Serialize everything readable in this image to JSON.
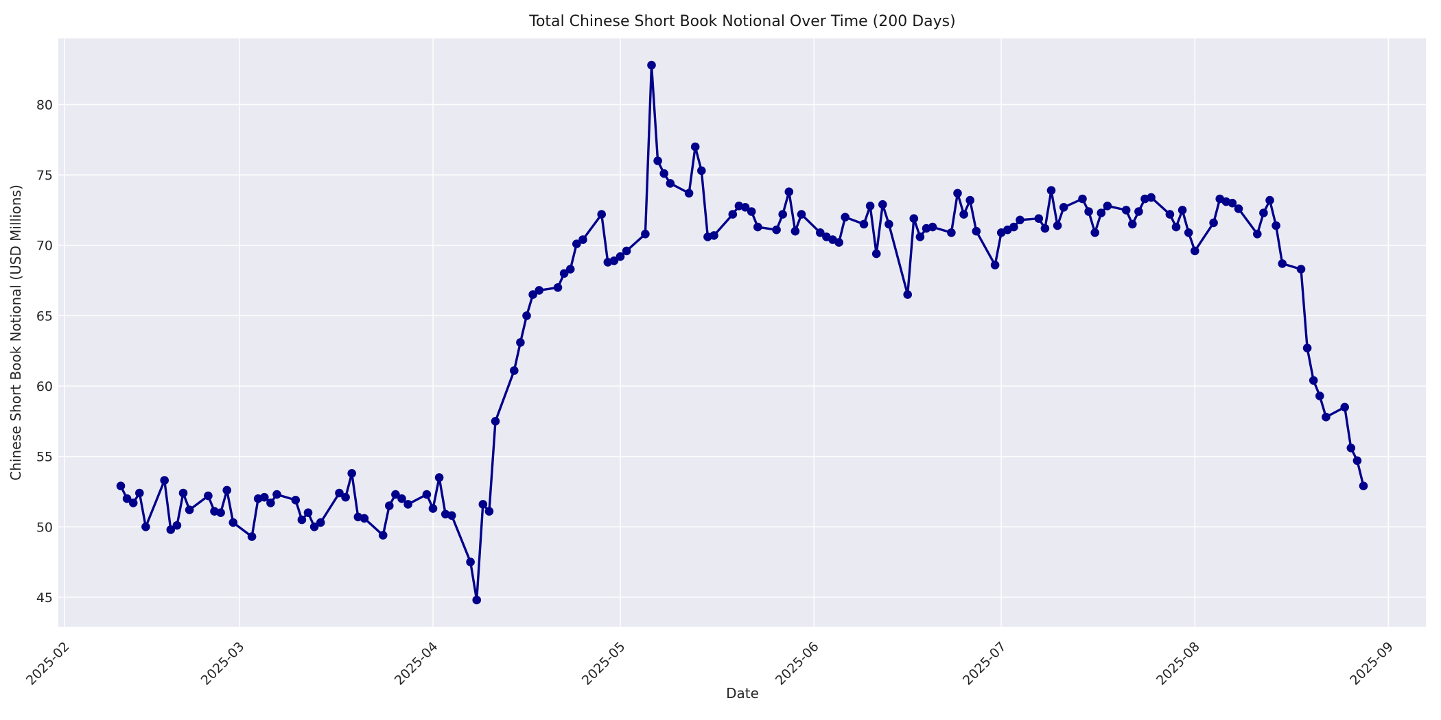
{
  "chart_data": {
    "type": "line",
    "title": "Total Chinese Short Book Notional Over Time (200 Days)",
    "xlabel": "Date",
    "ylabel": "Chinese Short Book Notional (USD Millions)",
    "grid": true,
    "legend_position": "none",
    "line_color": "#00008b",
    "marker_color": "#00008b",
    "plot_background": "#eaeaf2",
    "grid_color": "#ffffff",
    "text_color": "#262626",
    "ylim": [
      42.9,
      84.7
    ],
    "xlim": [
      "2025-01-31",
      "2025-09-07"
    ],
    "y_ticks": [
      45,
      50,
      55,
      60,
      65,
      70,
      75,
      80
    ],
    "x_ticks": [
      {
        "date": "2025-02-01",
        "label": "2025-02"
      },
      {
        "date": "2025-03-01",
        "label": "2025-03"
      },
      {
        "date": "2025-04-01",
        "label": "2025-04"
      },
      {
        "date": "2025-05-01",
        "label": "2025-05"
      },
      {
        "date": "2025-06-01",
        "label": "2025-06"
      },
      {
        "date": "2025-07-01",
        "label": "2025-07"
      },
      {
        "date": "2025-08-01",
        "label": "2025-08"
      },
      {
        "date": "2025-09-01",
        "label": "2025-09"
      }
    ],
    "x": [
      "2025-02-10",
      "2025-02-11",
      "2025-02-12",
      "2025-02-13",
      "2025-02-14",
      "2025-02-17",
      "2025-02-18",
      "2025-02-19",
      "2025-02-20",
      "2025-02-21",
      "2025-02-24",
      "2025-02-25",
      "2025-02-26",
      "2025-02-27",
      "2025-02-28",
      "2025-03-03",
      "2025-03-04",
      "2025-03-05",
      "2025-03-06",
      "2025-03-07",
      "2025-03-10",
      "2025-03-11",
      "2025-03-12",
      "2025-03-13",
      "2025-03-14",
      "2025-03-17",
      "2025-03-18",
      "2025-03-19",
      "2025-03-20",
      "2025-03-21",
      "2025-03-24",
      "2025-03-25",
      "2025-03-26",
      "2025-03-27",
      "2025-03-28",
      "2025-03-31",
      "2025-04-01",
      "2025-04-02",
      "2025-04-03",
      "2025-04-04",
      "2025-04-07",
      "2025-04-08",
      "2025-04-09",
      "2025-04-10",
      "2025-04-11",
      "2025-04-14",
      "2025-04-15",
      "2025-04-16",
      "2025-04-17",
      "2025-04-18",
      "2025-04-21",
      "2025-04-22",
      "2025-04-23",
      "2025-04-24",
      "2025-04-25",
      "2025-04-28",
      "2025-04-29",
      "2025-04-30",
      "2025-05-01",
      "2025-05-02",
      "2025-05-05",
      "2025-05-06",
      "2025-05-07",
      "2025-05-08",
      "2025-05-09",
      "2025-05-12",
      "2025-05-13",
      "2025-05-14",
      "2025-05-15",
      "2025-05-16",
      "2025-05-19",
      "2025-05-20",
      "2025-05-21",
      "2025-05-22",
      "2025-05-23",
      "2025-05-26",
      "2025-05-27",
      "2025-05-28",
      "2025-05-29",
      "2025-05-30",
      "2025-06-02",
      "2025-06-03",
      "2025-06-04",
      "2025-06-05",
      "2025-06-06",
      "2025-06-09",
      "2025-06-10",
      "2025-06-11",
      "2025-06-12",
      "2025-06-13",
      "2025-06-16",
      "2025-06-17",
      "2025-06-18",
      "2025-06-19",
      "2025-06-20",
      "2025-06-23",
      "2025-06-24",
      "2025-06-25",
      "2025-06-26",
      "2025-06-27",
      "2025-06-30",
      "2025-07-01",
      "2025-07-02",
      "2025-07-03",
      "2025-07-04",
      "2025-07-07",
      "2025-07-08",
      "2025-07-09",
      "2025-07-10",
      "2025-07-11",
      "2025-07-14",
      "2025-07-15",
      "2025-07-16",
      "2025-07-17",
      "2025-07-18",
      "2025-07-21",
      "2025-07-22",
      "2025-07-23",
      "2025-07-24",
      "2025-07-25",
      "2025-07-28",
      "2025-07-29",
      "2025-07-30",
      "2025-07-31",
      "2025-08-01",
      "2025-08-04",
      "2025-08-05",
      "2025-08-06",
      "2025-08-07",
      "2025-08-08",
      "2025-08-11",
      "2025-08-12",
      "2025-08-13",
      "2025-08-14",
      "2025-08-15",
      "2025-08-18",
      "2025-08-19",
      "2025-08-20",
      "2025-08-21",
      "2025-08-22",
      "2025-08-25",
      "2025-08-26",
      "2025-08-27",
      "2025-08-28"
    ],
    "values": [
      52.9,
      52.0,
      51.7,
      52.4,
      50.0,
      53.3,
      49.8,
      50.1,
      52.4,
      51.2,
      52.2,
      51.1,
      51.0,
      52.6,
      50.3,
      49.3,
      52.0,
      52.1,
      51.7,
      52.3,
      51.9,
      50.5,
      51.0,
      50.0,
      50.3,
      52.4,
      52.1,
      53.8,
      50.7,
      50.6,
      49.4,
      51.5,
      52.3,
      52.0,
      51.6,
      52.3,
      51.3,
      53.5,
      50.9,
      50.8,
      47.5,
      44.8,
      51.6,
      51.1,
      57.5,
      61.1,
      63.1,
      65.0,
      66.5,
      66.8,
      67.0,
      68.0,
      68.3,
      70.1,
      70.4,
      72.2,
      68.8,
      68.9,
      69.2,
      69.6,
      70.8,
      82.8,
      76.0,
      75.1,
      74.4,
      73.7,
      77.0,
      75.3,
      70.6,
      70.7,
      72.2,
      72.8,
      72.7,
      72.4,
      71.3,
      71.1,
      72.2,
      73.8,
      71.0,
      72.2,
      70.9,
      70.6,
      70.4,
      70.2,
      72.0,
      71.5,
      72.8,
      69.4,
      72.9,
      71.5,
      66.5,
      71.9,
      70.6,
      71.2,
      71.3,
      70.9,
      73.7,
      72.2,
      73.2,
      71.0,
      68.6,
      70.9,
      71.1,
      71.3,
      71.8,
      71.9,
      71.2,
      73.9,
      71.4,
      72.7,
      73.3,
      72.4,
      70.9,
      72.3,
      72.8,
      72.5,
      71.5,
      72.4,
      73.3,
      73.4,
      72.2,
      71.3,
      72.5,
      70.9,
      69.6,
      71.6,
      73.3,
      73.1,
      73.0,
      72.6,
      70.8,
      72.3,
      73.2,
      71.4,
      68.7,
      68.3,
      62.7,
      60.4,
      59.3,
      57.8,
      58.5,
      55.6,
      54.7,
      52.9
    ]
  }
}
